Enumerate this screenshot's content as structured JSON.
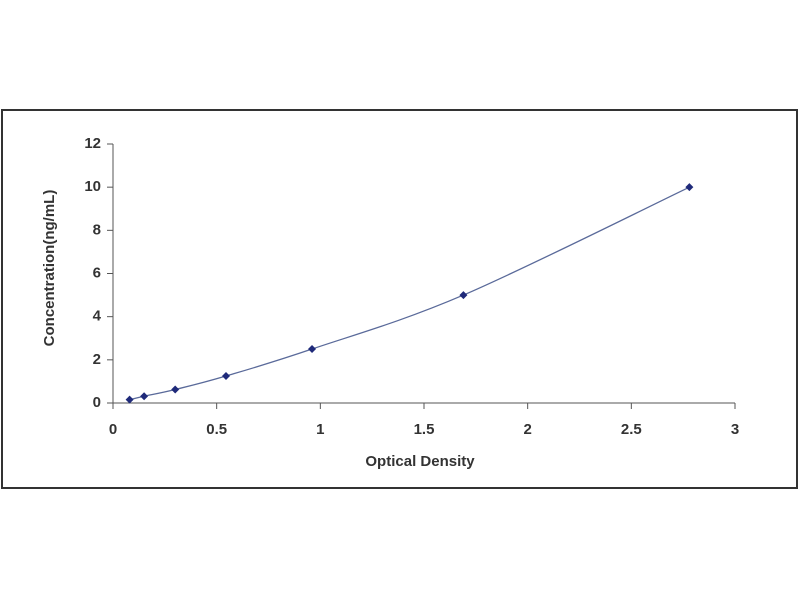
{
  "chart_data": {
    "type": "scatter",
    "x_label": "Optical Density",
    "y_label": "Concentration(ng/mL)",
    "x": [
      0.08,
      0.15,
      0.3,
      0.545,
      0.96,
      1.69,
      2.78
    ],
    "values": [
      0.156,
      0.312,
      0.625,
      1.25,
      2.5,
      5,
      10
    ],
    "color": "#1f2a7a",
    "line_color": "#5a6a9a",
    "xlim": [
      0,
      3
    ],
    "xticks": [
      0,
      0.5,
      1,
      1.5,
      2,
      2.5,
      3
    ],
    "ylim": [
      0,
      12
    ],
    "yticks": [
      0,
      2,
      4,
      6,
      8,
      10,
      12
    ]
  }
}
